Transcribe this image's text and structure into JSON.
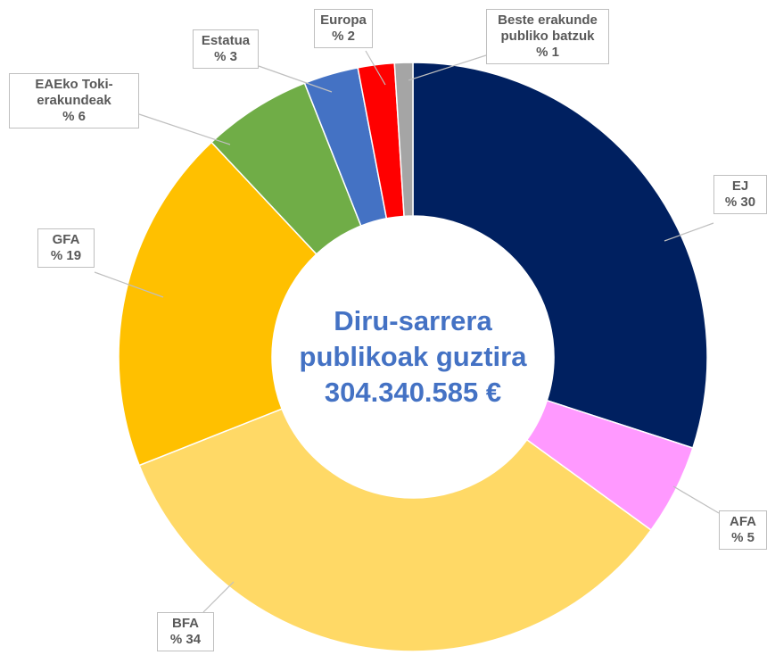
{
  "chart_data": {
    "type": "donut",
    "center_title": "Diru-sarrera publikoak guztira",
    "center_total": "304.340.585 €",
    "categories": [
      "EJ",
      "AFA",
      "BFA",
      "GFA",
      "EAEko Toki-erakundeak",
      "Estatua",
      "Europa",
      "Beste erakunde publiko batzuk"
    ],
    "values": [
      30,
      5,
      34,
      19,
      6,
      3,
      2,
      1
    ],
    "value_labels": [
      "% 30",
      "% 5",
      "% 34",
      "% 19",
      "% 6",
      "% 3",
      "% 2",
      "% 1"
    ],
    "colors": [
      "#002060",
      "#ff99ff",
      "#ffd966",
      "#ffc000",
      "#70ad47",
      "#4472c4",
      "#ff0000",
      "#a5a5a5"
    ]
  }
}
